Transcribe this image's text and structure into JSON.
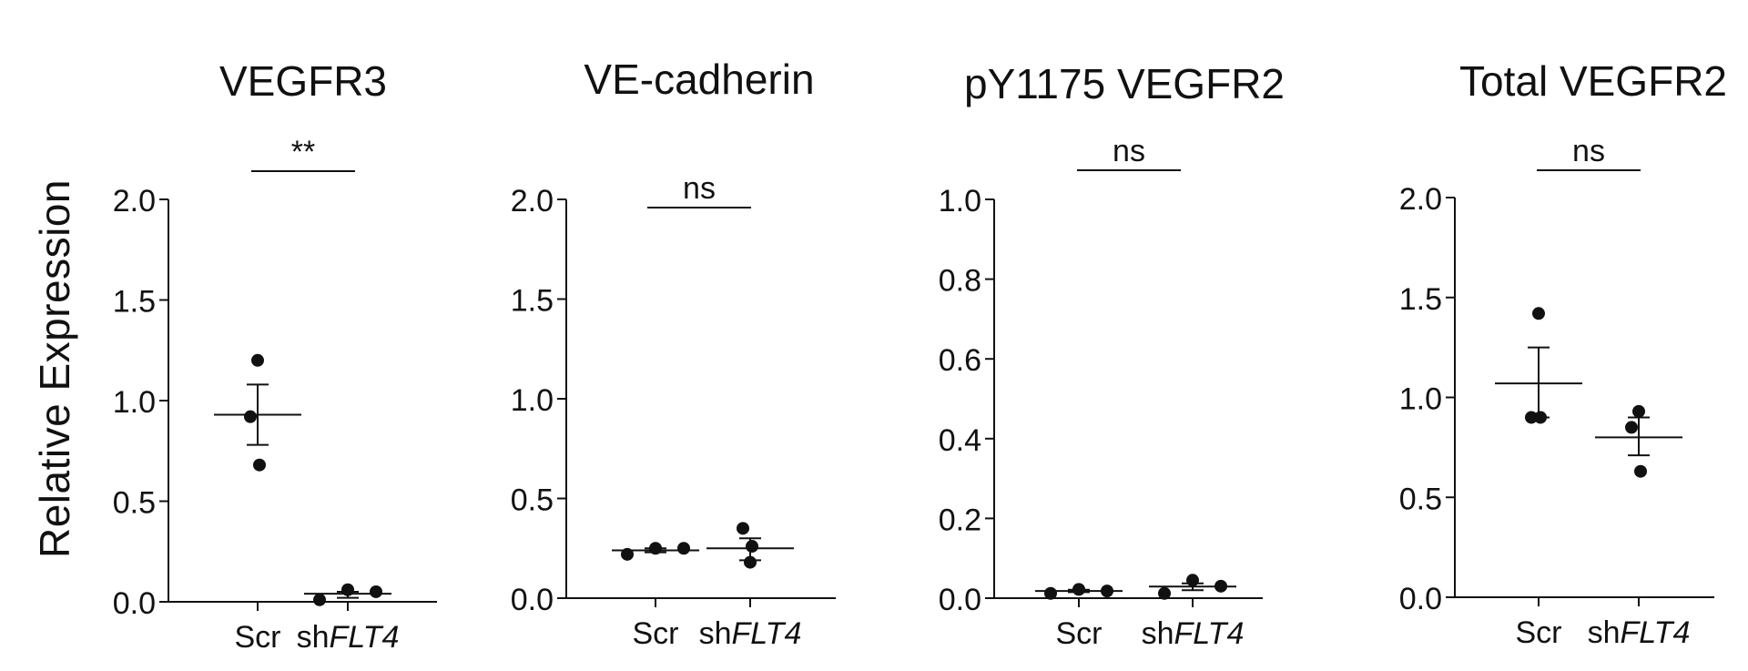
{
  "figure": {
    "ylabel": "Relative Expression"
  },
  "chart_data": [
    {
      "type": "scatter",
      "title": "VEGFR3",
      "ylabel": "Relative Expression",
      "ylim": [
        0,
        2.0
      ],
      "yticks": [
        0.0,
        0.5,
        1.0,
        1.5,
        2.0
      ],
      "tick_labels": [
        "0.0",
        "0.5",
        "1.0",
        "1.5",
        "2.0"
      ],
      "categories": [
        {
          "prefix": "Scr",
          "italic": ""
        },
        {
          "prefix": "sh",
          "italic": "FLT4"
        }
      ],
      "groups": [
        {
          "points": [
            1.2,
            0.92,
            0.68
          ],
          "mean": 0.93,
          "sem_low": 0.78,
          "sem_high": 1.08
        },
        {
          "points": [
            0.01,
            0.06,
            0.05
          ],
          "mean": 0.04,
          "sem_low": 0.02,
          "sem_high": 0.05
        }
      ],
      "significance": "**",
      "grid": false
    },
    {
      "type": "scatter",
      "title": "VE-cadherin",
      "ylim": [
        0,
        2.0
      ],
      "yticks": [
        0.0,
        0.5,
        1.0,
        1.5,
        2.0
      ],
      "tick_labels": [
        "0.0",
        "0.5",
        "1.0",
        "1.5",
        "2.0"
      ],
      "categories": [
        {
          "prefix": "Scr",
          "italic": ""
        },
        {
          "prefix": "sh",
          "italic": "FLT4"
        }
      ],
      "groups": [
        {
          "points": [
            0.22,
            0.25,
            0.25
          ],
          "mean": 0.24,
          "sem_low": 0.23,
          "sem_high": 0.25
        },
        {
          "points": [
            0.18,
            0.35,
            0.26
          ],
          "mean": 0.25,
          "sem_low": 0.19,
          "sem_high": 0.3
        }
      ],
      "significance": "ns",
      "grid": false
    },
    {
      "type": "scatter",
      "title": "pY1175 VEGFR2",
      "ylim": [
        0,
        1.0
      ],
      "yticks": [
        0.0,
        0.2,
        0.4,
        0.6,
        0.8,
        1.0
      ],
      "tick_labels": [
        "0.0",
        "0.2",
        "0.4",
        "0.6",
        "0.8",
        "1.0"
      ],
      "categories": [
        {
          "prefix": "Scr",
          "italic": ""
        },
        {
          "prefix": "sh",
          "italic": "FLT4"
        }
      ],
      "groups": [
        {
          "points": [
            0.012,
            0.022,
            0.018
          ],
          "mean": 0.018,
          "sem_low": 0.015,
          "sem_high": 0.021
        },
        {
          "points": [
            0.012,
            0.045,
            0.03
          ],
          "mean": 0.029,
          "sem_low": 0.02,
          "sem_high": 0.037
        }
      ],
      "significance": "ns",
      "grid": false
    },
    {
      "type": "scatter",
      "title": "Total VEGFR2",
      "ylim": [
        0,
        2.0
      ],
      "yticks": [
        0.0,
        0.5,
        1.0,
        1.5,
        2.0
      ],
      "tick_labels": [
        "0.0",
        "0.5",
        "1.0",
        "1.5",
        "2.0"
      ],
      "categories": [
        {
          "prefix": "Scr",
          "italic": ""
        },
        {
          "prefix": "sh",
          "italic": "FLT4"
        }
      ],
      "groups": [
        {
          "points": [
            1.42,
            0.9,
            0.9
          ],
          "mean": 1.07,
          "sem_low": 0.9,
          "sem_high": 1.25
        },
        {
          "points": [
            0.93,
            0.85,
            0.63
          ],
          "mean": 0.8,
          "sem_low": 0.71,
          "sem_high": 0.9
        }
      ],
      "significance": "ns",
      "grid": false
    }
  ]
}
